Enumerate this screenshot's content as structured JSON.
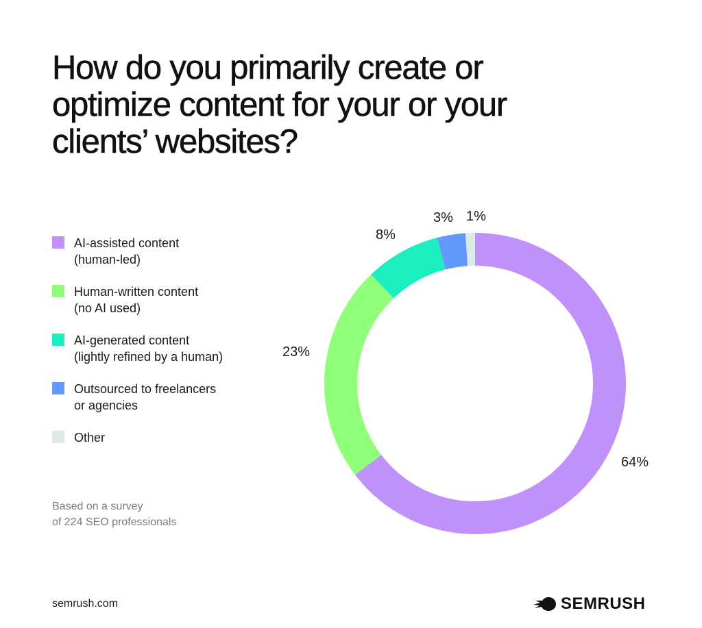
{
  "title": "How do you primarily create or optimize content for your or your clients’ websites?",
  "legend": [
    {
      "line1": "AI-assisted content",
      "line2": "(human-led)",
      "color": "#c191fb"
    },
    {
      "line1": "Human-written content",
      "line2": "(no AI used)",
      "color": "#8fff7a"
    },
    {
      "line1": "AI-generated content",
      "line2": "(lightly refined by a human)",
      "color": "#1deec0"
    },
    {
      "line1": "Outsourced to freelancers",
      "line2": "or agencies",
      "color": "#6399ff"
    },
    {
      "line1": "Other",
      "line2": "",
      "color": "#dcebe8"
    }
  ],
  "labels": {
    "ai_assisted": "64%",
    "human_written": "23%",
    "ai_generated": "8%",
    "outsourced": "3%",
    "other": "1%"
  },
  "note": {
    "line1": "Based on a survey",
    "line2": "of 224 SEO professionals"
  },
  "footer": {
    "url": "semrush.com",
    "brand": "SEMRUSH"
  },
  "chart_data": {
    "type": "pie",
    "variant": "donut",
    "title": "How do you primarily create or optimize content for your or your clients’ websites?",
    "categories": [
      "AI-assisted content (human-led)",
      "Human-written content (no AI used)",
      "AI-generated content (lightly refined by a human)",
      "Outsourced to freelancers or agencies",
      "Other"
    ],
    "values": [
      64,
      23,
      8,
      3,
      1
    ],
    "unit": "%",
    "colors": [
      "#c191fb",
      "#8fff7a",
      "#1deec0",
      "#6399ff",
      "#dcebe8"
    ],
    "start_angle": "12 o'clock",
    "direction": "clockwise",
    "legend_position": "left",
    "annotation": "Based on a survey of 224 SEO professionals"
  }
}
